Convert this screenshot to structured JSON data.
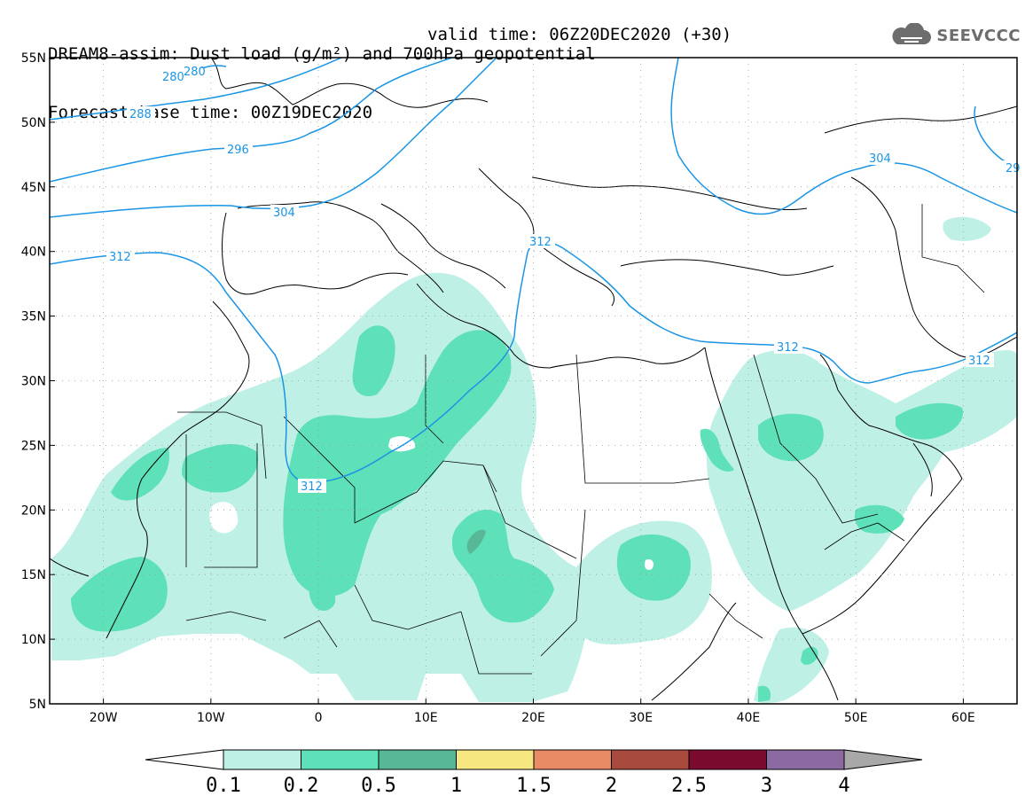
{
  "title": {
    "line1": "DREAM8-assim: Dust load (g/m²) and 700hPa geopotential",
    "line2_base": "Forecast base time: 00Z19DEC2020",
    "line2_valid": "valid time: 06Z20DEC2020 (+30)"
  },
  "logo": {
    "text": "SEEVCCC",
    "icon": "cloud-icon"
  },
  "map": {
    "lon_range": [
      -25,
      65
    ],
    "lat_range": [
      5,
      55
    ],
    "lat_ticks": [
      {
        "value": 55,
        "label": "55N"
      },
      {
        "value": 50,
        "label": "50N"
      },
      {
        "value": 45,
        "label": "45N"
      },
      {
        "value": 40,
        "label": "40N"
      },
      {
        "value": 35,
        "label": "35N"
      },
      {
        "value": 30,
        "label": "30N"
      },
      {
        "value": 25,
        "label": "25N"
      },
      {
        "value": 20,
        "label": "20N"
      },
      {
        "value": 15,
        "label": "15N"
      },
      {
        "value": 10,
        "label": "10N"
      },
      {
        "value": 5,
        "label": "5N"
      }
    ],
    "lon_ticks": [
      {
        "value": -20,
        "label": "20W"
      },
      {
        "value": -10,
        "label": "10W"
      },
      {
        "value": 0,
        "label": "0"
      },
      {
        "value": 10,
        "label": "10E"
      },
      {
        "value": 20,
        "label": "20E"
      },
      {
        "value": 30,
        "label": "30E"
      },
      {
        "value": 40,
        "label": "40E"
      },
      {
        "value": 50,
        "label": "50E"
      },
      {
        "value": 60,
        "label": "60E"
      }
    ],
    "contour_labels": [
      "280",
      "280",
      "288",
      "296",
      "304",
      "304",
      "312",
      "312",
      "312",
      "312",
      "312",
      "29"
    ],
    "colors": {
      "contour": "#1a95e6",
      "coast": "#000000",
      "grid": "#9a9a9a"
    }
  },
  "colorbar": {
    "labels": [
      "0.1",
      "0.2",
      "0.5",
      "1",
      "1.5",
      "2",
      "2.5",
      "3",
      "4"
    ],
    "colors": [
      "#ffffff",
      "#bff0e6",
      "#5ee0b8",
      "#57b797",
      "#f7e781",
      "#e98c66",
      "#a94a3e",
      "#7b0a2f",
      "#8a6aa0",
      "#a8a8a8"
    ]
  }
}
